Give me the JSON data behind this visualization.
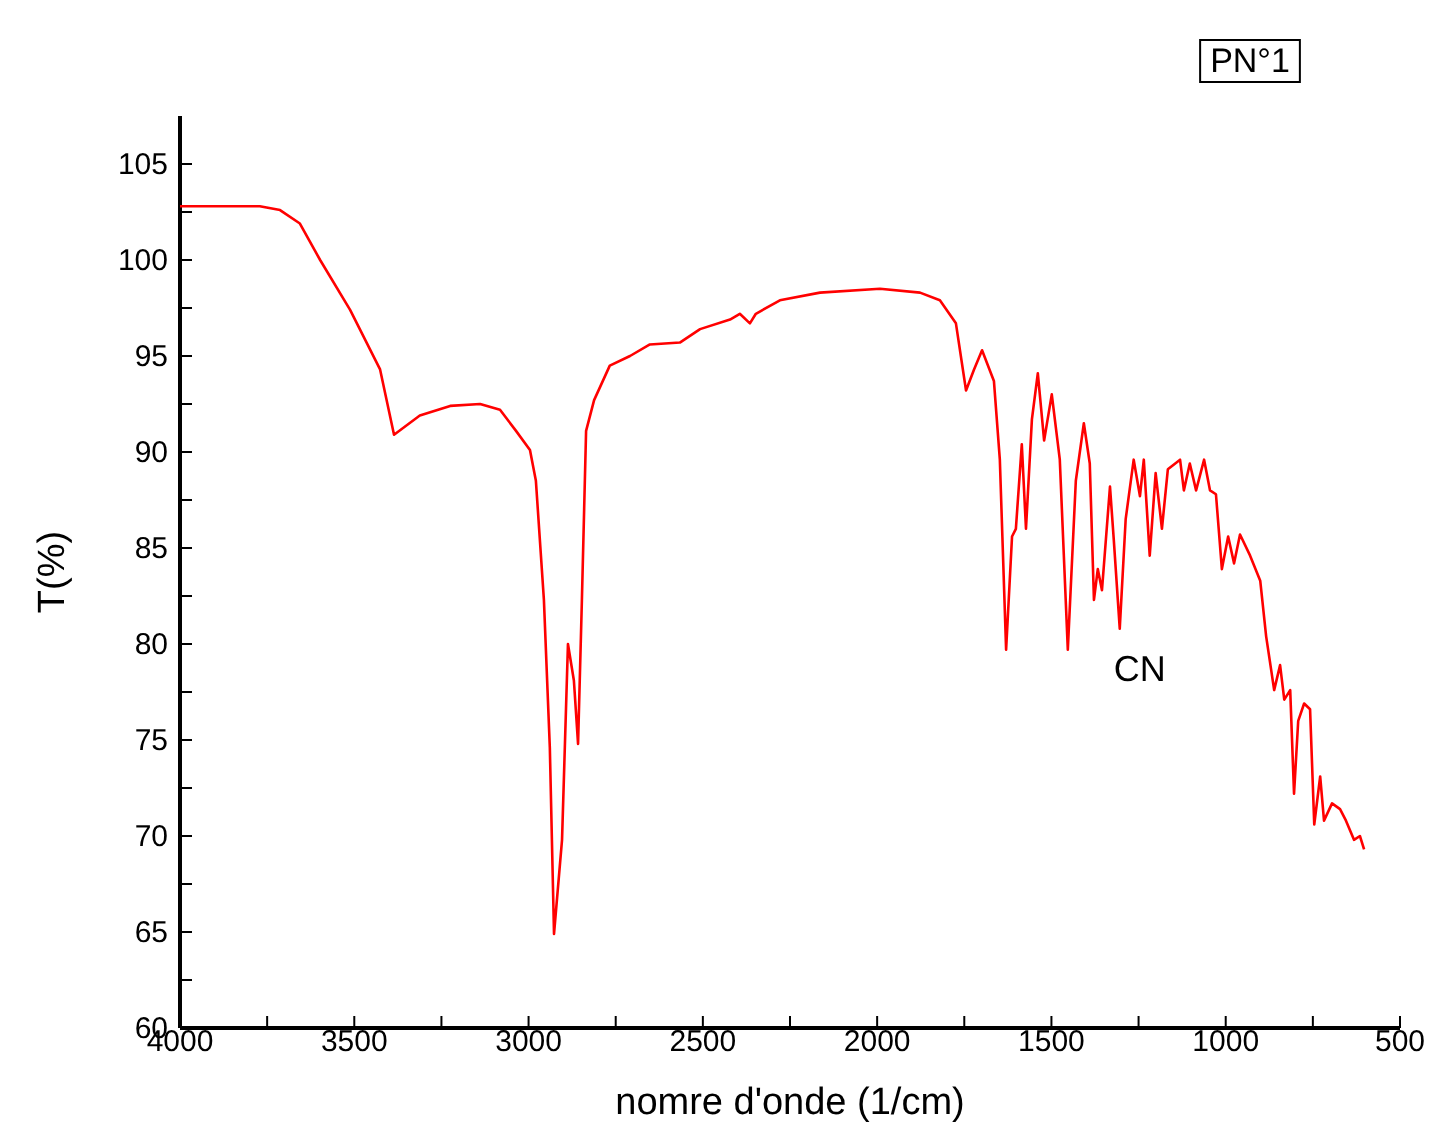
{
  "chart_data": {
    "type": "line",
    "title": "PN°1",
    "xlabel": "nomre d'onde (1/cm)",
    "ylabel": "T(%)",
    "xlim": [
      4000,
      500
    ],
    "ylim": [
      60,
      107.5
    ],
    "xticks": [
      4000,
      {
        "value": 3750,
        "label": null
      },
      3500,
      {
        "value": 3250,
        "label": null
      },
      3000,
      {
        "value": 2750,
        "label": null
      },
      2500,
      {
        "value": 2250,
        "label": null
      },
      2000,
      {
        "value": 1750,
        "label": null
      },
      1500,
      {
        "value": 1250,
        "label": null
      },
      1000,
      {
        "value": 750,
        "label": null
      },
      500
    ],
    "yticks": [
      60,
      {
        "value": 62.5,
        "label": null
      },
      65,
      {
        "value": 67.5,
        "label": null
      },
      70,
      {
        "value": 72.5,
        "label": null
      },
      75,
      {
        "value": 77.5,
        "label": null
      },
      80,
      {
        "value": 82.5,
        "label": null
      },
      85,
      {
        "value": 87.5,
        "label": null
      },
      90,
      {
        "value": 92.5,
        "label": null
      },
      95,
      {
        "value": 97.5,
        "label": null
      },
      100,
      {
        "value": 102.5,
        "label": null
      },
      105
    ],
    "grid": false,
    "marker": "none",
    "line_style": "solid",
    "annotations": [
      {
        "text": "CN",
        "x": 1304,
        "y": 80.8
      }
    ],
    "series": [
      {
        "color": "#ff0000",
        "x": [
          4000,
          3771,
          3713,
          3656,
          3598,
          3512,
          3426,
          3386,
          3312,
          3225,
          3139,
          3082,
          3036,
          2996,
          2979,
          2956,
          2939,
          2927,
          2904,
          2887,
          2870,
          2858,
          2847,
          2835,
          2812,
          2767,
          2709,
          2652,
          2566,
          2508,
          2422,
          2394,
          2365,
          2348,
          2279,
          2164,
          1992,
          1877,
          1820,
          1774,
          1745,
          1722,
          1699,
          1665,
          1648,
          1630,
          1613,
          1602,
          1585,
          1573,
          1556,
          1539,
          1521,
          1499,
          1476,
          1453,
          1430,
          1407,
          1390,
          1378,
          1367,
          1355,
          1332,
          1321,
          1304,
          1287,
          1264,
          1246,
          1235,
          1218,
          1201,
          1183,
          1166,
          1131,
          1120,
          1103,
          1085,
          1062,
          1045,
          1028,
          1011,
          993,
          976,
          959,
          930,
          901,
          884,
          861,
          844,
          832,
          815,
          804,
          792,
          775,
          758,
          746,
          729,
          718,
          695,
          672,
          655,
          632,
          615,
          603
        ],
        "values": [
          102.8,
          102.8,
          102.6,
          101.9,
          100.0,
          97.4,
          94.3,
          90.9,
          91.9,
          92.4,
          92.5,
          92.2,
          91.1,
          90.1,
          88.5,
          82.3,
          74.6,
          64.9,
          69.8,
          80.0,
          78.1,
          74.8,
          82.3,
          91.1,
          92.7,
          94.5,
          95.0,
          95.6,
          95.7,
          96.4,
          96.9,
          97.2,
          96.7,
          97.2,
          97.9,
          98.3,
          98.5,
          98.3,
          97.9,
          96.7,
          93.2,
          94.3,
          95.3,
          93.7,
          89.6,
          79.7,
          85.6,
          86.0,
          90.4,
          86.0,
          91.7,
          94.1,
          90.6,
          93.0,
          89.6,
          79.7,
          88.5,
          91.5,
          89.4,
          82.3,
          83.9,
          82.8,
          88.2,
          85.4,
          80.8,
          86.5,
          89.6,
          87.7,
          89.6,
          84.6,
          88.9,
          86.0,
          89.1,
          89.6,
          88.0,
          89.4,
          88.0,
          89.6,
          88.0,
          87.8,
          83.9,
          85.6,
          84.2,
          85.7,
          84.6,
          83.3,
          80.4,
          77.6,
          78.9,
          77.1,
          77.6,
          72.2,
          76.0,
          76.9,
          76.6,
          70.6,
          73.1,
          70.8,
          71.7,
          71.4,
          70.8,
          69.8,
          70.0,
          69.3
        ]
      }
    ]
  }
}
